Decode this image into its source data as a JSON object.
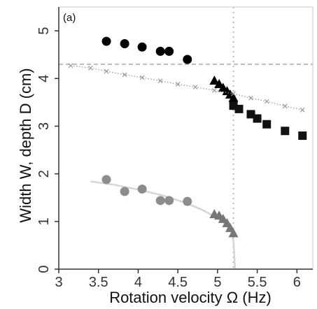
{
  "chart_data": {
    "type": "scatter",
    "panel_label": "(a)",
    "xlabel": "Rotation velocity Ω (Hz)",
    "ylabel": "Width W, depth D (cm)",
    "xlim": [
      3,
      6.2
    ],
    "ylim": [
      0,
      5.5
    ],
    "xticks": [
      3,
      3.5,
      4,
      4.5,
      5,
      5.5,
      6
    ],
    "xtick_labels": [
      "3",
      "3.5",
      "4",
      "4.5",
      "5",
      "5.5",
      "6"
    ],
    "yticks": [
      0,
      1,
      2,
      3,
      4,
      5
    ],
    "ytick_labels": [
      "0",
      "1",
      "2",
      "3",
      "4",
      "5"
    ],
    "grid": false,
    "reference_lines": {
      "vertical_x": 5.2,
      "horizontal_y": 4.3,
      "color": "#bbbbbb"
    },
    "series": [
      {
        "marker": "circle",
        "color": "#000000",
        "points": [
          [
            3.6,
            4.78
          ],
          [
            3.83,
            4.73
          ],
          [
            4.05,
            4.66
          ],
          [
            4.28,
            4.57
          ],
          [
            4.39,
            4.57
          ],
          [
            4.62,
            4.4
          ]
        ]
      },
      {
        "marker": "triangle",
        "color": "#000000",
        "points": [
          [
            4.96,
            3.95
          ],
          [
            5.02,
            3.88
          ],
          [
            5.07,
            3.8
          ],
          [
            5.12,
            3.73
          ],
          [
            5.16,
            3.66
          ],
          [
            5.2,
            3.59
          ]
        ]
      },
      {
        "marker": "square",
        "color": "#111111",
        "points": [
          [
            5.2,
            3.43
          ],
          [
            5.27,
            3.36
          ],
          [
            5.42,
            3.25
          ],
          [
            5.5,
            3.16
          ],
          [
            5.62,
            3.04
          ],
          [
            5.85,
            2.9
          ],
          [
            6.07,
            2.8
          ]
        ]
      },
      {
        "marker": "circle",
        "color": "#8c8c8c",
        "points": [
          [
            3.6,
            1.88
          ],
          [
            3.83,
            1.63
          ],
          [
            4.05,
            1.68
          ],
          [
            4.28,
            1.44
          ],
          [
            4.39,
            1.44
          ],
          [
            4.62,
            1.42
          ]
        ]
      },
      {
        "marker": "triangle",
        "color": "#777777",
        "points": [
          [
            4.96,
            1.15
          ],
          [
            5.02,
            1.12
          ],
          [
            5.07,
            1.05
          ],
          [
            5.12,
            0.96
          ],
          [
            5.16,
            0.86
          ],
          [
            5.2,
            0.75
          ]
        ]
      },
      {
        "marker": "x",
        "color": "#999999",
        "line": "dotted",
        "points": [
          [
            3.15,
            4.27
          ],
          [
            3.4,
            4.22
          ],
          [
            3.6,
            4.15
          ],
          [
            3.83,
            4.08
          ],
          [
            4.05,
            4.02
          ],
          [
            4.28,
            3.95
          ],
          [
            4.5,
            3.88
          ],
          [
            4.72,
            3.82
          ],
          [
            4.96,
            3.75
          ],
          [
            5.2,
            3.68
          ],
          [
            5.42,
            3.59
          ],
          [
            5.62,
            3.52
          ],
          [
            5.85,
            3.42
          ],
          [
            6.07,
            3.34
          ]
        ]
      }
    ],
    "fit_curve": {
      "color": "#d5d5d5",
      "points": [
        [
          3.4,
          1.84
        ],
        [
          3.7,
          1.77
        ],
        [
          4.0,
          1.67
        ],
        [
          4.3,
          1.55
        ],
        [
          4.6,
          1.39
        ],
        [
          4.8,
          1.25
        ],
        [
          5.0,
          1.07
        ],
        [
          5.1,
          0.94
        ],
        [
          5.17,
          0.78
        ],
        [
          5.2,
          0.6
        ],
        [
          5.21,
          0.35
        ],
        [
          5.215,
          0.15
        ],
        [
          5.22,
          0.0
        ]
      ]
    }
  }
}
